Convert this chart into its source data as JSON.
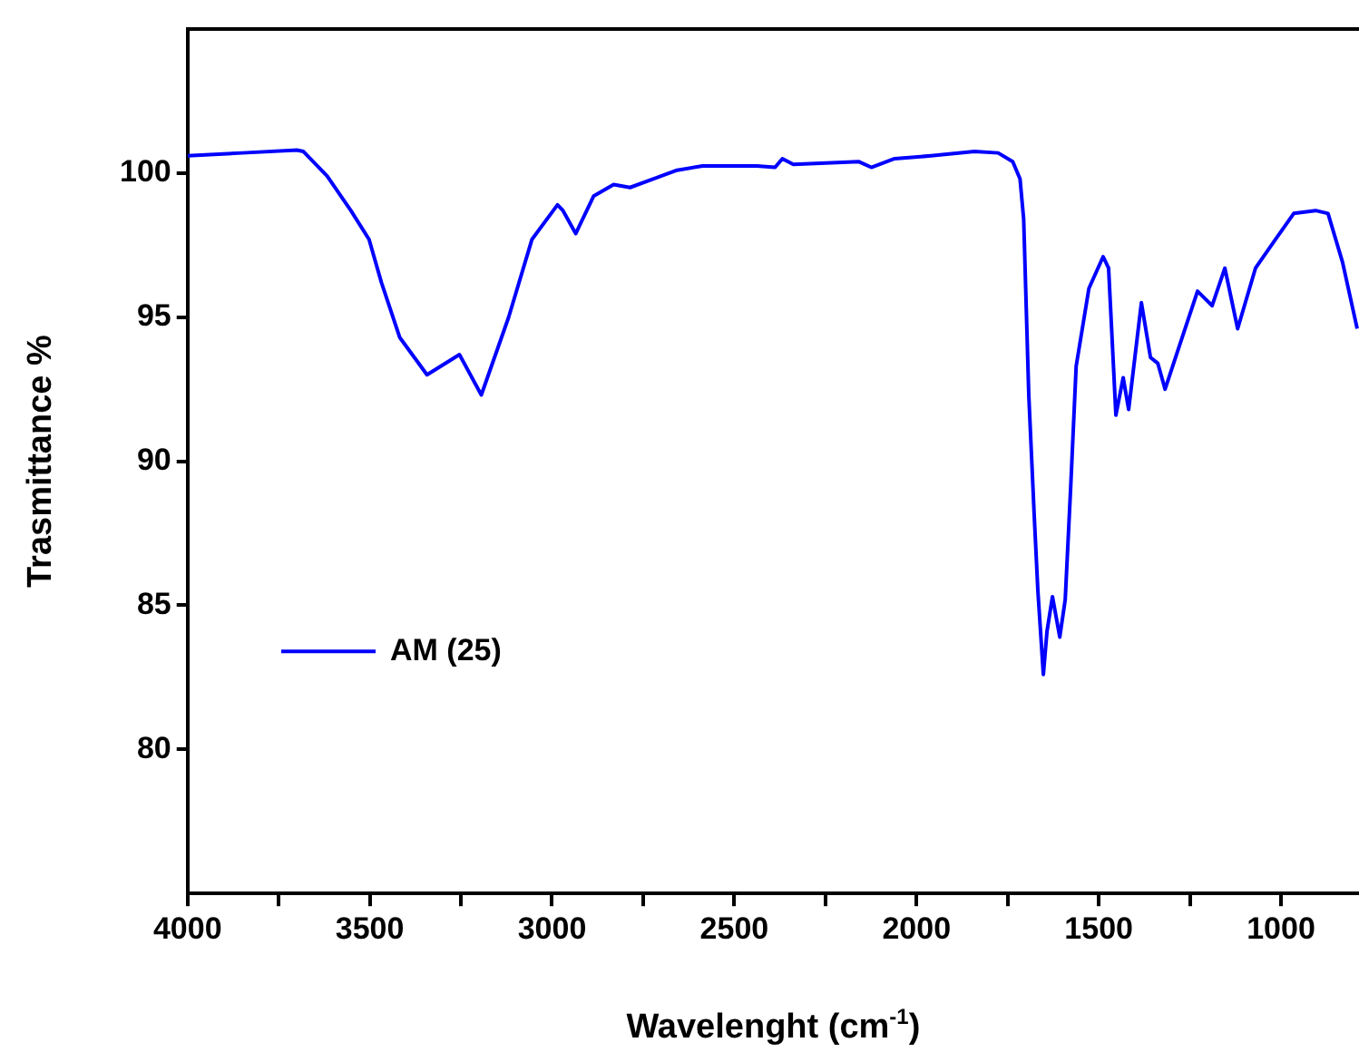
{
  "chart_data": {
    "type": "line",
    "xlabel": "Wavelenght (cm$^{-1}$)",
    "ylabel": "Trasmittance %",
    "xlim": [
      4000,
      786
    ],
    "ylim": [
      75,
      105
    ],
    "xticks": [
      4000,
      {
        "value": 3750,
        "label": null
      },
      3500,
      {
        "value": 3250,
        "label": null
      },
      3000,
      {
        "value": 2750,
        "label": null
      },
      2500,
      {
        "value": 2250,
        "label": null
      },
      2000,
      {
        "value": 1750,
        "label": null
      },
      1500,
      {
        "value": 1250,
        "label": null
      },
      1000
    ],
    "yticks": [
      80,
      85,
      90,
      95,
      100
    ],
    "grid": false,
    "legend": "left",
    "marker": "none",
    "line_style": "solid",
    "series": [
      {
        "name": "AM (25)",
        "color": "#0000ff",
        "x": [
          4000,
          3850,
          3700,
          3682,
          3617,
          3552,
          3502,
          3468,
          3418,
          3343,
          3254,
          3194,
          3119,
          3055,
          2985,
          2970,
          2935,
          2886,
          2831,
          2786,
          2721,
          2657,
          2587,
          2438,
          2388,
          2368,
          2338,
          2159,
          2124,
          2060,
          1960,
          1841,
          1776,
          1736,
          1716,
          1706,
          1692,
          1677,
          1667,
          1652,
          1642,
          1627,
          1607,
          1592,
          1577,
          1562,
          1527,
          1488,
          1473,
          1453,
          1433,
          1418,
          1383,
          1358,
          1338,
          1318,
          1279,
          1229,
          1189,
          1154,
          1119,
          1070,
          1015,
          965,
          905,
          871,
          831,
          791
        ],
        "values": [
          100.6,
          100.7,
          100.8,
          100.75,
          99.9,
          98.7,
          97.7,
          96.2,
          94.3,
          93.0,
          93.7,
          92.3,
          95.0,
          97.7,
          98.9,
          98.7,
          97.9,
          99.2,
          99.6,
          99.5,
          99.8,
          100.1,
          100.25,
          100.25,
          100.2,
          100.5,
          100.3,
          100.4,
          100.2,
          100.5,
          100.6,
          100.75,
          100.7,
          100.4,
          99.8,
          98.4,
          92.3,
          88.1,
          85.5,
          82.6,
          84.1,
          85.3,
          83.9,
          85.2,
          89.1,
          93.3,
          96.0,
          97.1,
          96.7,
          91.6,
          92.9,
          91.8,
          95.5,
          93.6,
          93.4,
          92.5,
          94.0,
          95.9,
          95.4,
          96.7,
          94.6,
          96.7,
          97.7,
          98.6,
          98.7,
          98.6,
          96.9,
          94.6
        ]
      }
    ]
  }
}
